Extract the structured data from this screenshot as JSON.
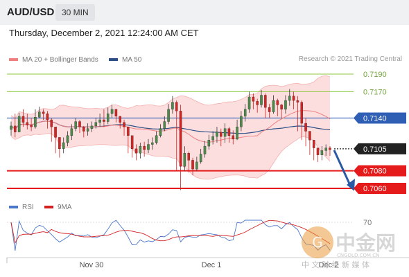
{
  "header": {
    "symbol": "AUD/USD",
    "timeframe": "30 MIN"
  },
  "datetime": "Thursday, December 2, 2021 12:24:00 AM CET",
  "legend_price": [
    {
      "label": "MA 20 + Bollinger Bands",
      "color": "#f08080"
    },
    {
      "label": "MA 50",
      "color": "#2c4f86"
    }
  ],
  "legend_rsi": [
    {
      "label": "RSI",
      "color": "#4a77c9"
    },
    {
      "label": "9MA",
      "color": "#d42020"
    }
  ],
  "credit": "Research © 2021 Trading Central",
  "watermark": {
    "brand": "中金网",
    "domain": "CNGOLD.COM.CN",
    "tagline": "中 文 财 经 新 媒 体"
  },
  "colors": {
    "resistance": "#8cc63f",
    "support": "#e51a1a",
    "pivot": "#2f5fb5",
    "current": "#222222",
    "arrow": "#2a5aa5"
  },
  "chart_data": {
    "type": "candlestick",
    "ylim": [
      7040,
      7205
    ],
    "levels": [
      {
        "label": "0.7190",
        "value": 7190,
        "kind": "resistance"
      },
      {
        "label": "0.7170",
        "value": 7170,
        "kind": "resistance"
      },
      {
        "label": "0.7140",
        "value": 7140,
        "kind": "pivot"
      },
      {
        "label": "0.7105",
        "value": 7105,
        "kind": "current"
      },
      {
        "label": "0.7080",
        "value": 7080,
        "kind": "support"
      },
      {
        "label": "0.7060",
        "value": 7060,
        "kind": "support"
      }
    ],
    "x_ticks": [
      "Nov 30",
      "Dec 1",
      "Dec 2"
    ],
    "rsi_label": "70",
    "close": [
      7131,
      7124,
      7142,
      7135,
      7132,
      7130,
      7141,
      7147,
      7145,
      7138,
      7130,
      7118,
      7105,
      7112,
      7120,
      7128,
      7136,
      7130,
      7125,
      7128,
      7131,
      7135,
      7138,
      7136,
      7145,
      7150,
      7142,
      7135,
      7130,
      7120,
      7105,
      7100,
      7108,
      7104,
      7110,
      7112,
      7120,
      7128,
      7136,
      7150,
      7158,
      7148,
      7085,
      7100,
      7092,
      7082,
      7090,
      7099,
      7108,
      7115,
      7119,
      7124,
      7119,
      7128,
      7120,
      7116,
      7130,
      7142,
      7150,
      7164,
      7159,
      7155,
      7166,
      7152,
      7147,
      7160,
      7155,
      7150,
      7160,
      7165,
      7160,
      7158,
      7134,
      7125,
      7115,
      7106,
      7098,
      7103,
      7106,
      7104
    ],
    "high": [
      7136,
      7145,
      7146,
      7150,
      7145,
      7140,
      7150,
      7153,
      7150,
      7148,
      7140,
      7125,
      7115,
      7118,
      7125,
      7133,
      7140,
      7138,
      7131,
      7134,
      7136,
      7140,
      7145,
      7150,
      7152,
      7155,
      7150,
      7142,
      7138,
      7125,
      7112,
      7110,
      7112,
      7113,
      7116,
      7118,
      7125,
      7133,
      7142,
      7156,
      7165,
      7160,
      7155,
      7108,
      7102,
      7095,
      7096,
      7105,
      7114,
      7121,
      7125,
      7130,
      7128,
      7134,
      7130,
      7126,
      7138,
      7148,
      7156,
      7170,
      7168,
      7162,
      7172,
      7168,
      7156,
      7166,
      7162,
      7156,
      7166,
      7173,
      7170,
      7165,
      7160,
      7140,
      7122,
      7113,
      7104,
      7108,
      7110,
      7108
    ],
    "low": [
      7120,
      7118,
      7124,
      7130,
      7127,
      7125,
      7128,
      7140,
      7138,
      7128,
      7113,
      7100,
      7095,
      7100,
      7108,
      7115,
      7125,
      7123,
      7118,
      7120,
      7124,
      7128,
      7130,
      7130,
      7133,
      7140,
      7135,
      7128,
      7120,
      7100,
      7095,
      7092,
      7094,
      7096,
      7100,
      7104,
      7110,
      7118,
      7125,
      7133,
      7145,
      7080,
      7058,
      7080,
      7078,
      7075,
      7080,
      7088,
      7095,
      7104,
      7110,
      7112,
      7108,
      7112,
      7112,
      7110,
      7115,
      7125,
      7136,
      7146,
      7150,
      7146,
      7152,
      7140,
      7140,
      7145,
      7142,
      7140,
      7145,
      7154,
      7150,
      7125,
      7115,
      7108,
      7098,
      7092,
      7090,
      7092,
      7097,
      7097
    ]
  }
}
